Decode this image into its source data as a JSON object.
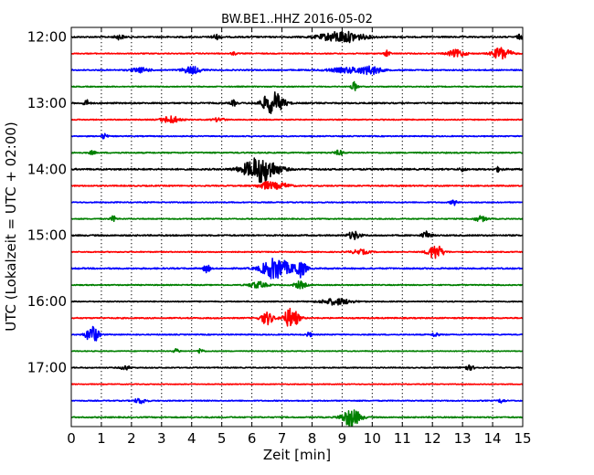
{
  "chart_data": {
    "type": "line",
    "title": "BW.BE1..HHZ 2016-05-02",
    "xlabel": "Zeit  [min]",
    "ylabel": "UTC (Lokalzeit = UTC + 02:00)",
    "xlim": [
      0,
      15
    ],
    "x_ticks": [
      "0",
      "1",
      "2",
      "3",
      "4",
      "5",
      "6",
      "7",
      "8",
      "9",
      "10",
      "11",
      "12",
      "13",
      "14",
      "15"
    ],
    "y_ticks": [
      "12:00",
      "13:00",
      "14:00",
      "15:00",
      "16:00",
      "17:00"
    ],
    "trace_interval_min": 15,
    "grid": "vertical-dotted",
    "colors": [
      "#000000",
      "#ff0000",
      "#0000ff",
      "#008000"
    ],
    "traces": [
      {
        "start": "12:00",
        "color": "#000000",
        "noise": 0.7,
        "events": [
          [
            9.0,
            0.7,
            6
          ],
          [
            1.6,
            0.15,
            2.5
          ],
          [
            4.8,
            0.15,
            2.5
          ],
          [
            14.9,
            0.1,
            2.5
          ]
        ]
      },
      {
        "start": "12:15",
        "color": "#ff0000",
        "noise": 0.5,
        "events": [
          [
            14.3,
            0.3,
            7
          ],
          [
            12.8,
            0.3,
            4
          ],
          [
            10.5,
            0.08,
            5
          ],
          [
            5.4,
            0.08,
            2
          ]
        ]
      },
      {
        "start": "12:30",
        "color": "#0000ff",
        "noise": 0.6,
        "events": [
          [
            4.0,
            0.3,
            4
          ],
          [
            9.3,
            0.7,
            3
          ],
          [
            10.0,
            0.3,
            3.5
          ],
          [
            2.3,
            0.3,
            2.5
          ]
        ]
      },
      {
        "start": "12:45",
        "color": "#008000",
        "noise": 0.5,
        "events": [
          [
            9.4,
            0.1,
            5
          ]
        ]
      },
      {
        "start": "13:00",
        "color": "#000000",
        "noise": 0.7,
        "events": [
          [
            6.7,
            0.35,
            12
          ],
          [
            0.5,
            0.1,
            3.5
          ],
          [
            5.4,
            0.1,
            3
          ]
        ]
      },
      {
        "start": "13:15",
        "color": "#ff0000",
        "noise": 0.5,
        "events": [
          [
            3.3,
            0.3,
            4
          ],
          [
            4.9,
            0.2,
            2
          ]
        ]
      },
      {
        "start": "13:30",
        "color": "#0000ff",
        "noise": 0.5,
        "events": [
          [
            1.1,
            0.1,
            3
          ]
        ]
      },
      {
        "start": "13:45",
        "color": "#008000",
        "noise": 0.6,
        "events": [
          [
            8.9,
            0.15,
            2.5
          ],
          [
            0.7,
            0.1,
            2
          ]
        ]
      },
      {
        "start": "14:00",
        "color": "#000000",
        "noise": 0.8,
        "events": [
          [
            6.3,
            0.55,
            14
          ],
          [
            13.0,
            0.1,
            2
          ],
          [
            14.2,
            0.1,
            2.5
          ]
        ]
      },
      {
        "start": "14:15",
        "color": "#ff0000",
        "noise": 0.6,
        "events": [
          [
            6.5,
            0.3,
            4
          ],
          [
            7.0,
            0.3,
            2.5
          ]
        ]
      },
      {
        "start": "14:30",
        "color": "#0000ff",
        "noise": 0.5,
        "events": [
          [
            12.7,
            0.1,
            3.5
          ]
        ]
      },
      {
        "start": "14:45",
        "color": "#008000",
        "noise": 0.5,
        "events": [
          [
            1.4,
            0.1,
            3
          ],
          [
            13.6,
            0.2,
            3
          ]
        ]
      },
      {
        "start": "15:00",
        "color": "#000000",
        "noise": 0.7,
        "events": [
          [
            9.4,
            0.2,
            4.5
          ],
          [
            11.8,
            0.15,
            4
          ]
        ]
      },
      {
        "start": "15:15",
        "color": "#ff0000",
        "noise": 0.5,
        "events": [
          [
            12.1,
            0.25,
            8
          ],
          [
            9.6,
            0.3,
            2.5
          ]
        ]
      },
      {
        "start": "15:30",
        "color": "#0000ff",
        "noise": 0.7,
        "events": [
          [
            6.8,
            0.45,
            12
          ],
          [
            7.6,
            0.2,
            9
          ],
          [
            4.5,
            0.1,
            5
          ]
        ]
      },
      {
        "start": "15:45",
        "color": "#008000",
        "noise": 0.5,
        "events": [
          [
            6.2,
            0.3,
            3.5
          ],
          [
            7.6,
            0.2,
            4
          ]
        ]
      },
      {
        "start": "16:00",
        "color": "#000000",
        "noise": 0.5,
        "events": [
          [
            8.8,
            0.5,
            3.5
          ]
        ]
      },
      {
        "start": "16:15",
        "color": "#ff0000",
        "noise": 0.6,
        "events": [
          [
            6.5,
            0.2,
            7
          ],
          [
            7.3,
            0.25,
            11
          ]
        ]
      },
      {
        "start": "16:30",
        "color": "#0000ff",
        "noise": 0.5,
        "events": [
          [
            0.7,
            0.2,
            10
          ],
          [
            12.1,
            0.1,
            3
          ],
          [
            7.9,
            0.1,
            2.5
          ]
        ]
      },
      {
        "start": "16:45",
        "color": "#008000",
        "noise": 0.4,
        "events": [
          [
            3.5,
            0.1,
            2.5
          ],
          [
            4.3,
            0.1,
            3
          ]
        ]
      },
      {
        "start": "17:00",
        "color": "#000000",
        "noise": 0.5,
        "events": [
          [
            1.8,
            0.15,
            2.5
          ],
          [
            13.2,
            0.2,
            2.5
          ]
        ]
      },
      {
        "start": "17:15",
        "color": "#ff0000",
        "noise": 0.4,
        "events": []
      },
      {
        "start": "17:30",
        "color": "#0000ff",
        "noise": 0.5,
        "events": [
          [
            2.3,
            0.2,
            3
          ],
          [
            14.3,
            0.1,
            2.5
          ]
        ]
      },
      {
        "start": "17:45",
        "color": "#008000",
        "noise": 0.6,
        "events": [
          [
            9.3,
            0.3,
            10
          ]
        ]
      }
    ]
  }
}
